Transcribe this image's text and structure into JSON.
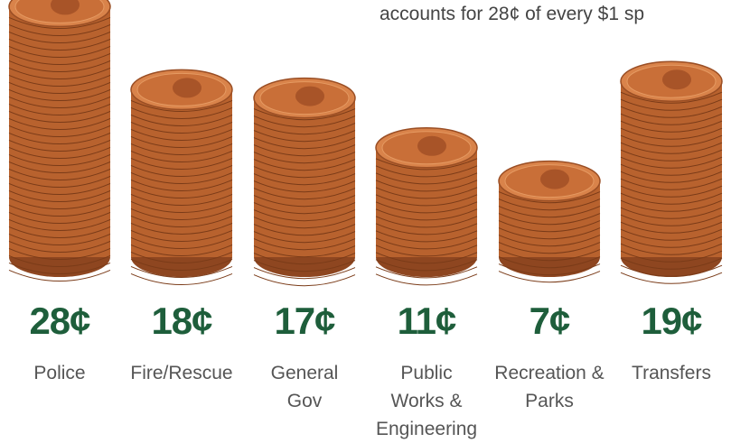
{
  "chart_data": {
    "type": "pictograph",
    "subtitle": "accounts for 28¢ of every $1 sp",
    "categories": [
      "Police",
      "Fire/Rescue",
      "General Gov",
      "Public Works & Engineering",
      "Recreation & Parks",
      "Transfers"
    ],
    "values": [
      28,
      18,
      17,
      11,
      7,
      19
    ],
    "value_labels": [
      "28¢",
      "18¢",
      "17¢",
      "11¢",
      "7¢",
      "19¢"
    ],
    "color": "#b8622e"
  }
}
